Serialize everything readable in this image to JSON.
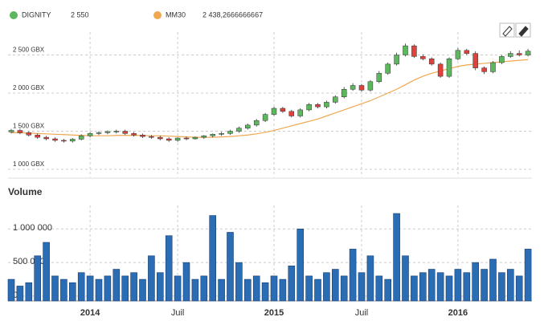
{
  "chart_data": {
    "type": "candlestick",
    "categories": [
      null,
      null,
      null,
      null,
      null,
      null,
      null,
      null,
      null,
      "2014",
      null,
      null,
      null,
      null,
      null,
      null,
      null,
      null,
      null,
      "Juil",
      null,
      null,
      null,
      null,
      null,
      null,
      null,
      null,
      null,
      null,
      "2015",
      null,
      null,
      null,
      null,
      null,
      null,
      null,
      null,
      null,
      "Juil",
      null,
      null,
      null,
      null,
      null,
      null,
      null,
      null,
      null,
      null,
      "2016",
      null,
      null,
      null,
      null,
      null,
      null,
      null,
      null
    ],
    "price": {
      "name": "DIGNITY",
      "legend_label": "2 550",
      "up_color": "#5cb85c",
      "down_color": "#e0413a",
      "open": [
        1490,
        1510,
        1480,
        1450,
        1420,
        1400,
        1380,
        1370,
        1395,
        1440,
        1470,
        1480,
        1495,
        1500,
        1470,
        1450,
        1430,
        1420,
        1400,
        1380,
        1410,
        1400,
        1420,
        1440,
        1460,
        1470,
        1500,
        1540,
        1580,
        1640,
        1720,
        1800,
        1760,
        1700,
        1780,
        1850,
        1820,
        1880,
        1950,
        2050,
        2100,
        2040,
        2150,
        2260,
        2380,
        2500,
        2620,
        2480,
        2450,
        2380,
        2220,
        2450,
        2560,
        2520,
        2330,
        2280,
        2400,
        2480,
        2520,
        2500
      ],
      "high": [
        1530,
        1530,
        1500,
        1470,
        1440,
        1420,
        1400,
        1410,
        1460,
        1490,
        1500,
        1510,
        1520,
        1520,
        1490,
        1470,
        1450,
        1440,
        1420,
        1420,
        1430,
        1430,
        1450,
        1470,
        1490,
        1520,
        1560,
        1600,
        1660,
        1740,
        1820,
        1820,
        1780,
        1800,
        1870,
        1870,
        1900,
        1970,
        2080,
        2130,
        2120,
        2170,
        2290,
        2400,
        2530,
        2650,
        2640,
        2510,
        2470,
        2400,
        2470,
        2590,
        2580,
        2550,
        2350,
        2420,
        2500,
        2550,
        2560,
        2580
      ],
      "low": [
        1470,
        1460,
        1430,
        1400,
        1380,
        1360,
        1350,
        1350,
        1380,
        1420,
        1450,
        1460,
        1470,
        1450,
        1430,
        1410,
        1400,
        1380,
        1360,
        1360,
        1380,
        1390,
        1400,
        1420,
        1440,
        1450,
        1480,
        1520,
        1560,
        1620,
        1700,
        1740,
        1680,
        1680,
        1760,
        1800,
        1800,
        1860,
        1930,
        2030,
        2020,
        2020,
        2130,
        2240,
        2360,
        2480,
        2460,
        2430,
        2360,
        2200,
        2200,
        2430,
        2500,
        2300,
        2250,
        2260,
        2380,
        2460,
        2480,
        2480
      ],
      "close": [
        1510,
        1480,
        1450,
        1420,
        1400,
        1380,
        1370,
        1395,
        1440,
        1470,
        1480,
        1495,
        1500,
        1470,
        1450,
        1430,
        1420,
        1400,
        1380,
        1410,
        1400,
        1420,
        1440,
        1460,
        1470,
        1500,
        1540,
        1580,
        1640,
        1720,
        1800,
        1760,
        1700,
        1780,
        1850,
        1820,
        1880,
        1950,
        2050,
        2100,
        2040,
        2150,
        2260,
        2380,
        2500,
        2620,
        2480,
        2450,
        2380,
        2220,
        2450,
        2560,
        2520,
        2330,
        2280,
        2400,
        2480,
        2520,
        2500,
        2550
      ]
    },
    "moving_average": {
      "name": "MM30",
      "legend_label": "2 438,2666666667",
      "color": "#f0a850",
      "values": [
        1480,
        1480,
        1475,
        1470,
        1465,
        1460,
        1455,
        1450,
        1445,
        1440,
        1440,
        1440,
        1445,
        1445,
        1445,
        1445,
        1440,
        1440,
        1435,
        1430,
        1425,
        1420,
        1420,
        1420,
        1425,
        1430,
        1440,
        1450,
        1465,
        1485,
        1510,
        1540,
        1570,
        1600,
        1630,
        1660,
        1700,
        1740,
        1780,
        1820,
        1860,
        1900,
        1950,
        2000,
        2050,
        2110,
        2170,
        2220,
        2260,
        2290,
        2320,
        2350,
        2370,
        2380,
        2390,
        2400,
        2410,
        2420,
        2430,
        2438.2666666667
      ]
    },
    "ylim": [
      900,
      2800
    ],
    "yticks": [
      {
        "value": 1000,
        "label": "1 000 GBX"
      },
      {
        "value": 1500,
        "label": "1 500 GBX"
      },
      {
        "value": 2000,
        "label": "2 000 GBX"
      },
      {
        "value": 2500,
        "label": "2 500 GBX"
      }
    ],
    "volume": {
      "title": "Volume",
      "color": "#2a6db5",
      "values": [
        250000,
        150000,
        200000,
        600000,
        800000,
        300000,
        250000,
        200000,
        350000,
        300000,
        250000,
        300000,
        400000,
        300000,
        350000,
        250000,
        600000,
        350000,
        900000,
        300000,
        500000,
        250000,
        300000,
        1200000,
        250000,
        950000,
        500000,
        250000,
        300000,
        200000,
        300000,
        250000,
        450000,
        1000000,
        300000,
        250000,
        350000,
        400000,
        300000,
        700000,
        350000,
        600000,
        300000,
        250000,
        1230000,
        600000,
        300000,
        350000,
        400000,
        350000,
        300000,
        400000,
        350000,
        500000,
        400000,
        550000,
        350000,
        400000,
        300000,
        700000
      ],
      "ylim": [
        0,
        1350000
      ],
      "yticks": [
        0,
        {
          "value": 500000,
          "label": "500 000"
        },
        {
          "value": 1000000,
          "label": "1 000 000"
        }
      ]
    },
    "grid": true
  }
}
